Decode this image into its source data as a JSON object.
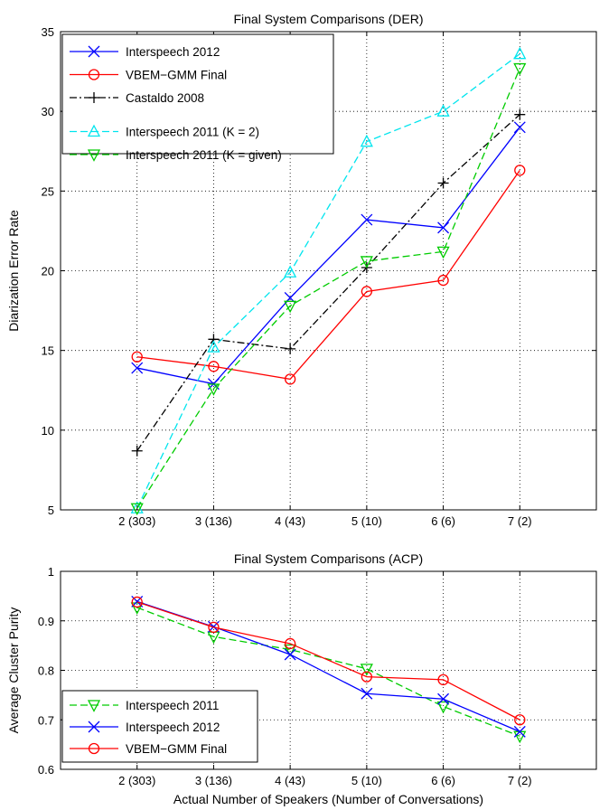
{
  "chart_data": [
    {
      "type": "line",
      "title": "Final System Comparisons (DER)",
      "xlabel": "",
      "ylabel": "Diarization Error Rate",
      "categories": [
        "2 (303)",
        "3 (136)",
        "4 (43)",
        "5 (10)",
        "6 (6)",
        "7 (2)"
      ],
      "ylim": [
        5,
        35
      ],
      "yticks": [
        "5",
        "10",
        "15",
        "20",
        "25",
        "30",
        "35"
      ],
      "grid": true,
      "legend_position": "top-left",
      "series": [
        {
          "name": "Interspeech 2012",
          "color": "#0000ff",
          "marker": "x",
          "dash": "solid",
          "values": [
            13.9,
            12.9,
            18.3,
            23.2,
            22.7,
            29.0
          ]
        },
        {
          "name": "VBEM−GMM Final",
          "color": "#ff0000",
          "marker": "circle",
          "dash": "solid",
          "values": [
            14.6,
            14.0,
            13.2,
            18.7,
            19.4,
            26.3
          ]
        },
        {
          "name": "Castaldo 2008",
          "color": "#000000",
          "marker": "plus",
          "dash": "dashdot",
          "values": [
            8.7,
            15.7,
            15.1,
            20.2,
            25.5,
            29.8
          ]
        },
        {
          "name": "Interspeech 2011 (K = 2)",
          "color": "#00e5ee",
          "marker": "triangle-up",
          "dash": "dashed",
          "values": [
            5.1,
            15.2,
            19.9,
            28.1,
            30.0,
            33.6
          ]
        },
        {
          "name": "Interspeech 2011 (K = given)",
          "color": "#00cc00",
          "marker": "triangle-down",
          "dash": "dashed",
          "values": [
            5.1,
            12.6,
            17.8,
            20.6,
            21.2,
            32.7
          ]
        }
      ]
    },
    {
      "type": "line",
      "title": "Final System Comparisons (ACP)",
      "xlabel": "Actual Number of Speakers (Number of Conversations)",
      "ylabel": "Average Cluster Purity",
      "categories": [
        "2 (303)",
        "3 (136)",
        "4 (43)",
        "5 (10)",
        "6 (6)",
        "7 (2)"
      ],
      "ylim": [
        0.6,
        1.0
      ],
      "yticks": [
        "0.6",
        "0.7",
        "0.8",
        "0.9",
        "1"
      ],
      "grid": true,
      "legend_position": "bottom-left",
      "series": [
        {
          "name": "Interspeech 2011",
          "color": "#00cc00",
          "marker": "triangle-down",
          "dash": "dashed",
          "values": [
            0.927,
            0.868,
            0.842,
            0.803,
            0.727,
            0.667
          ]
        },
        {
          "name": "Interspeech 2012",
          "color": "#0000ff",
          "marker": "x",
          "dash": "solid",
          "values": [
            0.939,
            0.888,
            0.832,
            0.753,
            0.742,
            0.676
          ]
        },
        {
          "name": "VBEM−GMM Final",
          "color": "#ff0000",
          "marker": "circle",
          "dash": "solid",
          "values": [
            0.938,
            0.887,
            0.854,
            0.787,
            0.781,
            0.7
          ]
        }
      ]
    }
  ]
}
